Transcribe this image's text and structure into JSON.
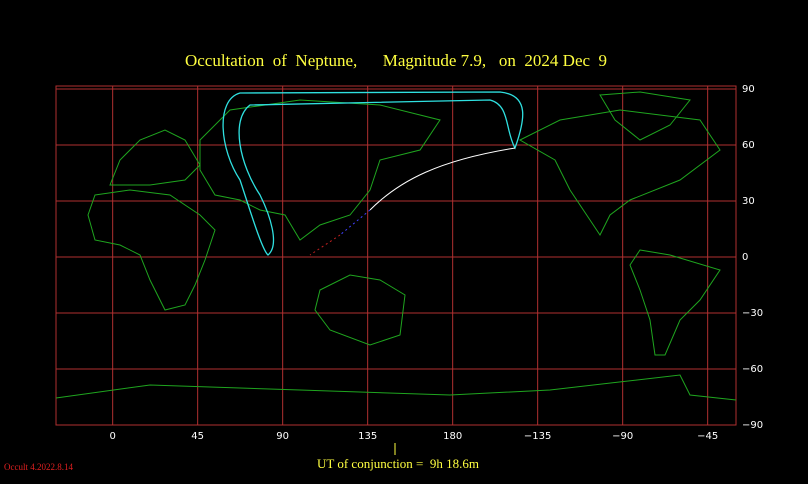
{
  "chart_data": {
    "type": "map",
    "title": "Occultation  of  Neptune,      Magnitude 7.9,   on  2024 Dec  9",
    "footer": "UT of conjunction =  9h 18.6m",
    "version": "Occult 4.2022.8.14",
    "xlim": [
      -30,
      330
    ],
    "xticks": [
      0,
      45,
      90,
      135,
      180,
      {
        "value": 225,
        "label": "−135"
      },
      {
        "value": 270,
        "label": "−90"
      },
      {
        "value": 315,
        "label": "−45"
      }
    ],
    "ylim": [
      -90,
      90
    ],
    "yticks": [
      90,
      60,
      30,
      0,
      {
        "value": -30,
        "label": "−30"
      },
      {
        "value": -60,
        "label": "−60"
      },
      {
        "value": -90,
        "label": "−90"
      }
    ],
    "grid": true
  }
}
